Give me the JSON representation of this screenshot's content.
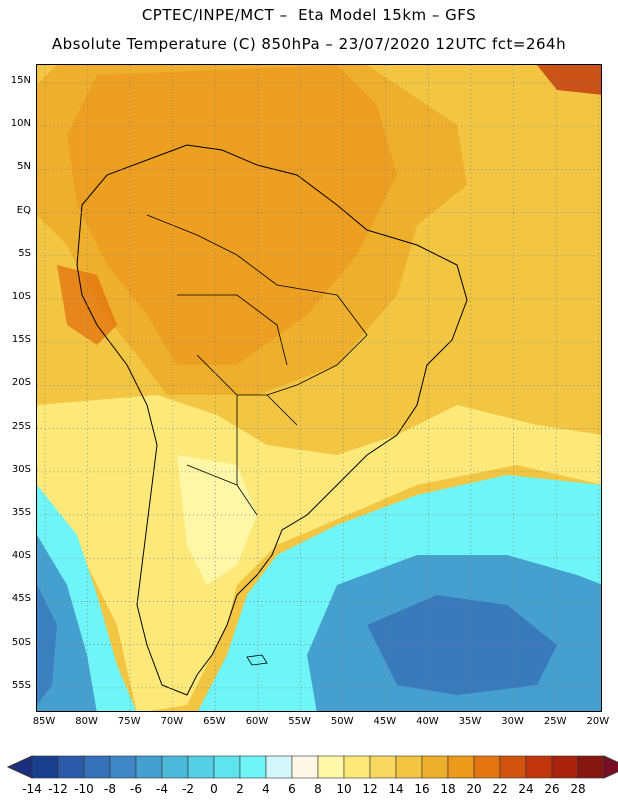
{
  "title_line1": "CPTEC/INPE/MCT –  Eta Model 15km – GFS",
  "title_line2": "Absolute Temperature (C) 850hPa – 23/07/2020 12UTC fct=264h",
  "lat_labels": [
    "15N",
    "10N",
    "5N",
    "EQ",
    "5S",
    "10S",
    "15S",
    "20S",
    "25S",
    "30S",
    "35S",
    "40S",
    "45S",
    "50S",
    "55S"
  ],
  "lon_labels": [
    "85W",
    "80W",
    "75W",
    "70W",
    "65W",
    "60W",
    "55W",
    "50W",
    "45W",
    "40W",
    "35W",
    "30W",
    "25W",
    "20W"
  ],
  "colorbar": {
    "tick_labels": [
      "-14",
      "-12",
      "-10",
      "-8",
      "-6",
      "-4",
      "-2",
      "0",
      "2",
      "4",
      "6",
      "8",
      "10",
      "12",
      "14",
      "16",
      "18",
      "20",
      "22",
      "24",
      "26",
      "28"
    ],
    "colors": [
      "#1a3f8f",
      "#2a5aa8",
      "#3670b8",
      "#3f86c4",
      "#45a0cf",
      "#4cb8da",
      "#55cfe4",
      "#5fe4ee",
      "#6ff5f8",
      "#d4f6fb",
      "#fff8e6",
      "#fff7a8",
      "#fde97a",
      "#f8d860",
      "#f2c542",
      "#eeb02c",
      "#eb9a1c",
      "#e47612",
      "#d4520f",
      "#c2360e",
      "#a8220e",
      "#861710"
    ],
    "low_arrow_color": "#1b2f80",
    "high_arrow_color": "#7a0d24"
  },
  "colors": {
    "hot": "#eb9a1c",
    "warm": "#f2c542",
    "mild": "#fde97a",
    "cool": "#6ff5f8",
    "cold": "#45a0cf",
    "coldest": "#3670b8",
    "coast": "#000000"
  }
}
